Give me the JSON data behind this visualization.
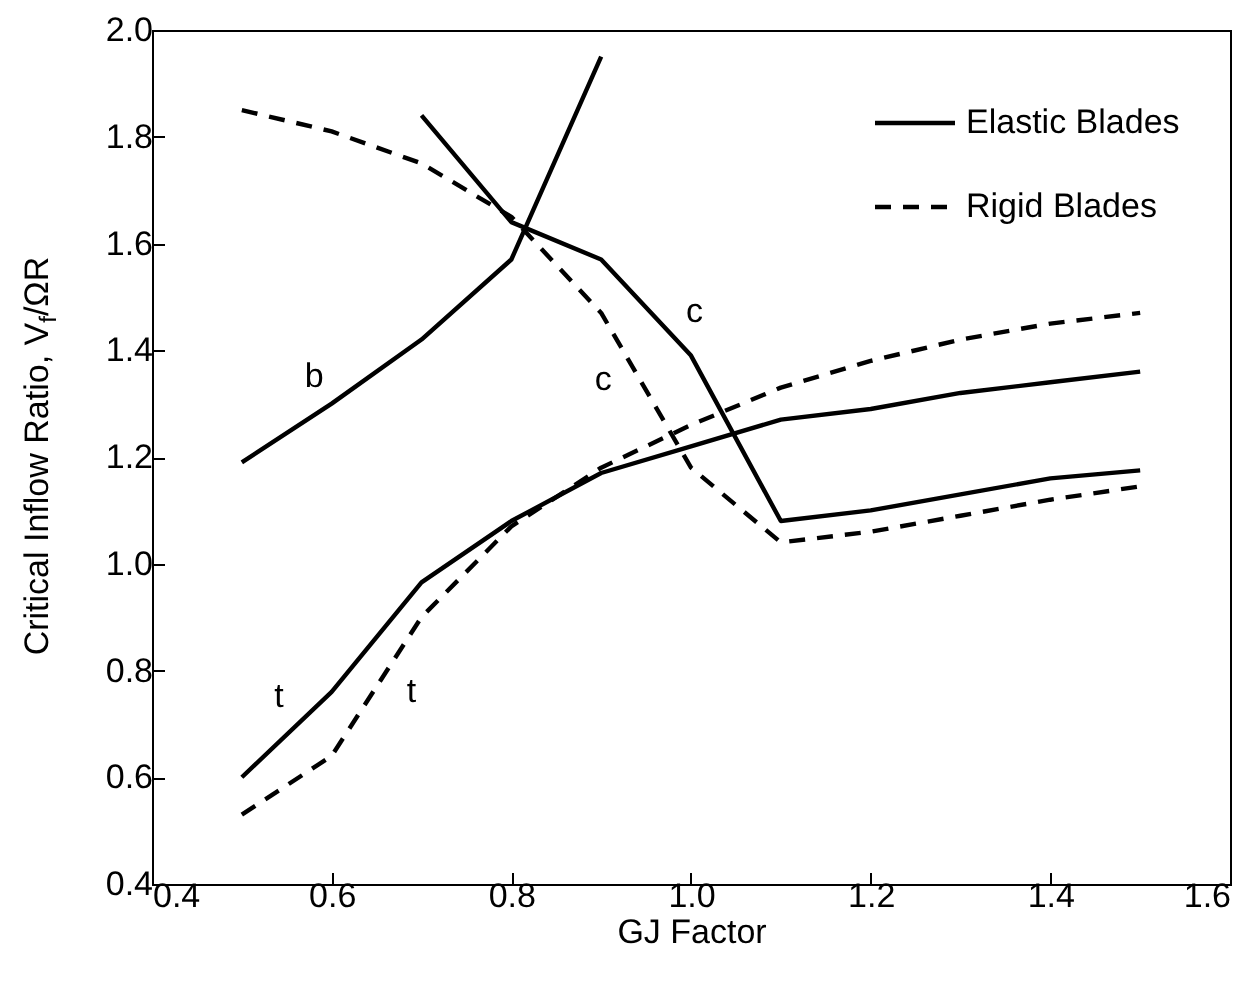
{
  "chart_data": {
    "type": "line",
    "xlabel": "GJ Factor",
    "ylabel": "Critical Inflow Ratio, V$_{f}$/ΩR",
    "xlim": [
      0.4,
      1.6
    ],
    "xticks": [
      0.4,
      0.6,
      0.8,
      {
        "value": 1,
        "label": "1.0"
      },
      1.2,
      1.4,
      1.6
    ],
    "ylim": [
      0.4,
      2
    ],
    "yticks": [
      0.4,
      0.6,
      0.8,
      {
        "value": 1,
        "label": "1.0"
      },
      1.2,
      1.4,
      1.6,
      1.8,
      {
        "value": 2,
        "label": "2.0"
      }
    ],
    "grid": false,
    "legend": "top right",
    "marker": "none",
    "series": [
      {
        "name": "Elastic Blades",
        "color": "#000000",
        "line_style": "solid",
        "x": [
          0.5,
          0.6,
          0.7,
          0.8,
          0.9,
          1.0,
          1.1,
          1.2,
          1.3,
          1.4,
          1.5
        ],
        "values": [
          0.6,
          0.76,
          0.965,
          1.08,
          1.17,
          1.22,
          1.27,
          1.29,
          1.32,
          1.34,
          1.36
        ]
      },
      {
        "color": "#000000",
        "line_style": "solid",
        "x": [
          0.5,
          0.6,
          0.7,
          0.8,
          0.9
        ],
        "values": [
          1.19,
          1.3,
          1.42,
          1.57,
          1.95
        ]
      },
      {
        "color": "#000000",
        "line_style": "solid",
        "x": [
          0.7,
          0.8,
          0.9,
          1.0,
          1.1,
          1.2,
          1.3,
          1.4,
          1.5
        ],
        "values": [
          1.84,
          1.64,
          1.57,
          1.39,
          1.08,
          1.1,
          1.13,
          1.16,
          1.175
        ]
      },
      {
        "name": "Rigid Blades",
        "color": "#000000",
        "line_style": "dashed",
        "x": [
          0.5,
          0.6,
          0.7,
          0.8,
          0.9,
          1.0,
          1.1,
          1.2,
          1.3,
          1.4,
          1.5
        ],
        "values": [
          1.85,
          1.81,
          1.75,
          1.65,
          1.47,
          1.18,
          1.04,
          1.06,
          1.09,
          1.12,
          1.145
        ]
      },
      {
        "color": "#000000",
        "line_style": "dashed",
        "x": [
          0.5,
          0.6,
          0.7,
          0.8,
          0.9,
          1.0,
          1.1,
          1.2,
          1.3,
          1.4,
          1.5
        ],
        "values": [
          0.53,
          0.64,
          0.9,
          1.07,
          1.18,
          1.26,
          1.33,
          1.38,
          1.42,
          1.45,
          1.47
        ]
      }
    ],
    "annotations": [
      {
        "text": "b",
        "x": 0.6,
        "y": 1.3
      },
      {
        "text": "c",
        "x": 0.933,
        "y": 1.375
      },
      {
        "text": "c",
        "x": 0.978,
        "y": 1.43
      },
      {
        "text": "t",
        "x": 0.566,
        "y": 0.706
      },
      {
        "text": "t",
        "x": 0.659,
        "y": 0.793
      }
    ]
  }
}
